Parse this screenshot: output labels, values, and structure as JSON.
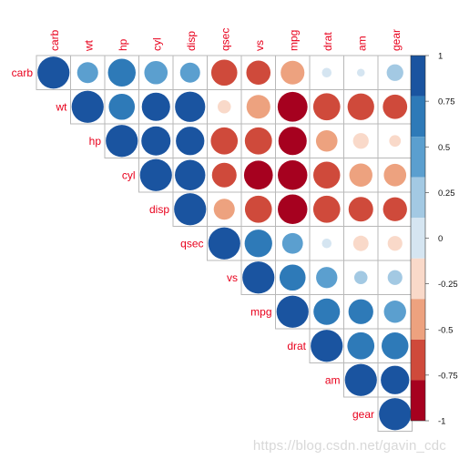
{
  "chart_data": {
    "type": "heatmap",
    "variables": [
      "carb",
      "wt",
      "hp",
      "cyl",
      "disp",
      "qsec",
      "vs",
      "mpg",
      "drat",
      "am",
      "gear"
    ],
    "matrix": [
      [
        1.0,
        0.43,
        0.75,
        0.53,
        0.39,
        -0.66,
        -0.57,
        -0.55,
        -0.09,
        0.06,
        0.27
      ],
      [
        0.43,
        1.0,
        0.66,
        0.78,
        0.89,
        -0.17,
        -0.55,
        -0.87,
        -0.71,
        -0.69,
        -0.58
      ],
      [
        0.75,
        0.66,
        1.0,
        0.83,
        0.79,
        -0.71,
        -0.72,
        -0.78,
        -0.45,
        -0.24,
        -0.13
      ],
      [
        0.53,
        0.78,
        0.83,
        1.0,
        0.9,
        -0.59,
        -0.81,
        -0.85,
        -0.7,
        -0.52,
        -0.49
      ],
      [
        0.39,
        0.89,
        0.79,
        0.9,
        1.0,
        -0.43,
        -0.71,
        -0.85,
        -0.71,
        -0.59,
        -0.56
      ],
      [
        -0.66,
        -0.17,
        -0.71,
        -0.59,
        -0.43,
        1.0,
        0.74,
        0.42,
        0.09,
        -0.23,
        -0.21
      ],
      [
        -0.57,
        -0.55,
        -0.72,
        -0.81,
        -0.71,
        0.74,
        1.0,
        0.66,
        0.44,
        0.17,
        0.21
      ],
      [
        -0.55,
        -0.87,
        -0.78,
        -0.85,
        -0.85,
        0.42,
        0.66,
        1.0,
        0.68,
        0.6,
        0.48
      ],
      [
        -0.09,
        -0.71,
        -0.45,
        -0.7,
        -0.71,
        0.09,
        0.44,
        0.68,
        1.0,
        0.71,
        0.7
      ],
      [
        0.06,
        -0.69,
        -0.24,
        -0.52,
        -0.59,
        -0.23,
        0.17,
        0.6,
        0.71,
        1.0,
        0.79
      ],
      [
        0.27,
        -0.58,
        -0.13,
        -0.49,
        -0.56,
        -0.21,
        0.21,
        0.48,
        0.7,
        0.79,
        1.0
      ]
    ],
    "layout": "upper-triangle",
    "glyph": "circle",
    "colorbar": {
      "ticks": [
        "1",
        "0.75",
        "0.5",
        "0.25",
        "0",
        "-0.25",
        "-0.5",
        "-0.75",
        "-1"
      ],
      "tick_values": [
        1,
        0.75,
        0.5,
        0.25,
        0,
        -0.25,
        -0.5,
        -0.75,
        -1
      ],
      "range": [
        -1,
        1
      ],
      "colors_top_to_bottom": [
        "#1a54a0",
        "#2e7ab8",
        "#5b9fcf",
        "#a3c9e3",
        "#d5e5f1",
        "#f9d9c9",
        "#eda27f",
        "#cf4a3b",
        "#a6011f"
      ]
    },
    "label_color": "#e8001c",
    "grid": true
  },
  "watermark": "https://blog.csdn.net/gavin_cdc"
}
